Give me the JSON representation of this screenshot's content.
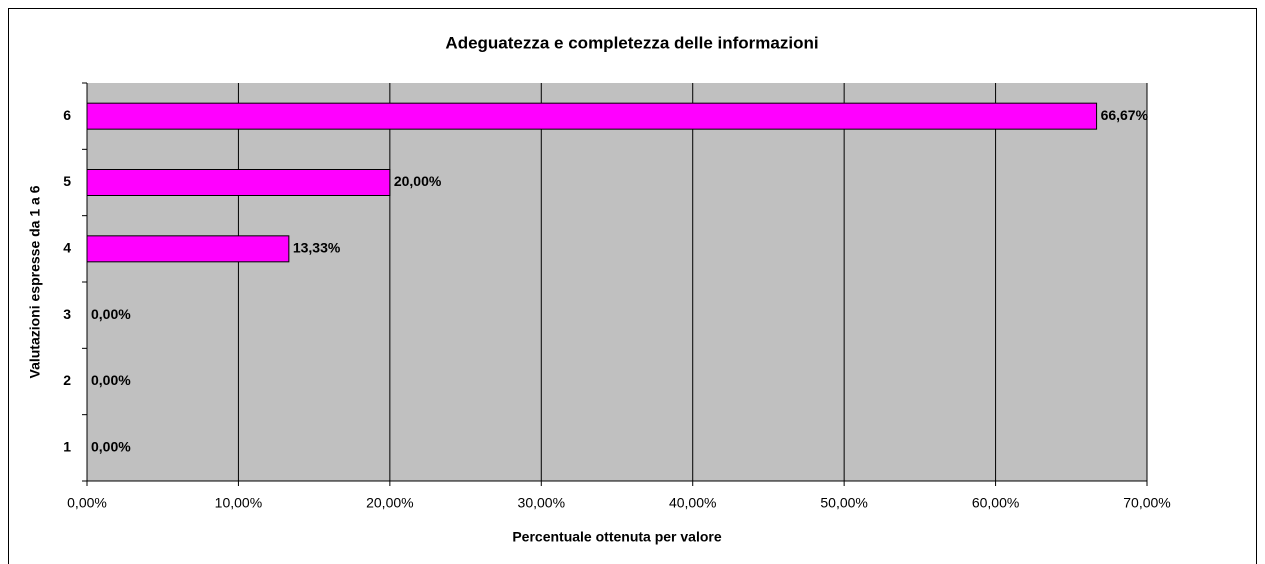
{
  "chart_data": {
    "type": "hbar",
    "title": "Adeguatezza e completezza delle informazioni",
    "x_label": "Percentuale ottenuta per valore",
    "y_label": "Valutazioni espresse da 1 a 6",
    "categories": [
      "1",
      "2",
      "3",
      "4",
      "5",
      "6"
    ],
    "values": [
      0,
      0,
      0,
      13.33,
      20,
      66.67
    ],
    "value_labels": [
      "0,00%",
      "0,00%",
      "0,00%",
      "13,33%",
      "20,00%",
      "66,67%"
    ],
    "color": "#ff00ff",
    "xlim": [
      0,
      70
    ],
    "xticks": [
      {
        "value": 0,
        "label": "0,00%"
      },
      {
        "value": 10,
        "label": "10,00%"
      },
      {
        "value": 20,
        "label": "20,00%"
      },
      {
        "value": 30,
        "label": "30,00%"
      },
      {
        "value": 40,
        "label": "40,00%"
      },
      {
        "value": 50,
        "label": "50,00%"
      },
      {
        "value": 60,
        "label": "60,00%"
      },
      {
        "value": 70,
        "label": "70,00%"
      }
    ],
    "grid": true
  }
}
